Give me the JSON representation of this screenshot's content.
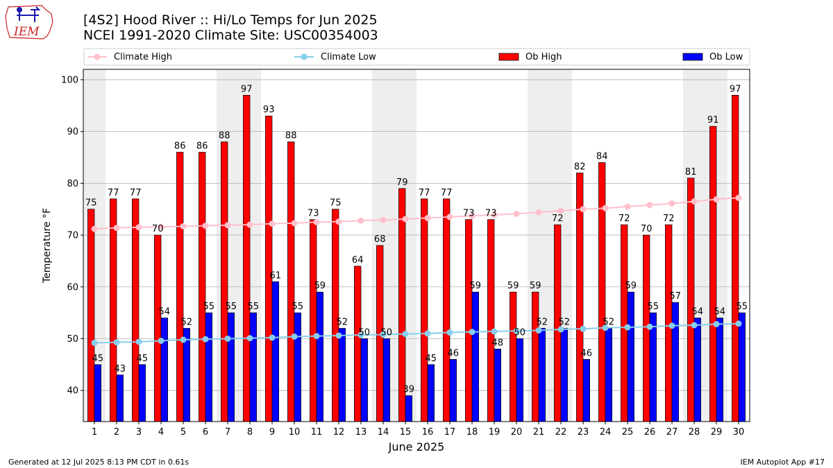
{
  "header": {
    "title_line1": "[4S2] Hood River :: Hi/Lo Temps for Jun 2025",
    "title_line2": "NCEI 1991-2020 Climate Site: USC00354003",
    "logo_text": "IEM"
  },
  "footer": {
    "generated": "Generated at 12 Jul 2025 8:13 PM CDT in 0.61s",
    "app": "IEM Autoplot App #17"
  },
  "colors": {
    "ob_high": "#ff0000",
    "ob_low": "#0000ff",
    "climate_high": "#ffc0cb",
    "climate_low": "#87ceeb",
    "weekend_shade": "#eeeeee",
    "grid": "#b0b0b0"
  },
  "chart_data": {
    "type": "bar",
    "title": "[4S2] Hood River :: Hi/Lo Temps for Jun 2025",
    "subtitle": "NCEI 1991-2020 Climate Site: USC00354003",
    "xlabel": "June 2025",
    "ylabel": "Temperature °F",
    "ylim": [
      34,
      102
    ],
    "yticks": [
      40,
      50,
      60,
      70,
      80,
      90,
      100
    ],
    "grid": true,
    "legend_position": "top",
    "categories": [
      "1",
      "2",
      "3",
      "4",
      "5",
      "6",
      "7",
      "8",
      "9",
      "10",
      "11",
      "12",
      "13",
      "14",
      "15",
      "16",
      "17",
      "18",
      "19",
      "20",
      "21",
      "22",
      "23",
      "24",
      "25",
      "26",
      "27",
      "28",
      "29",
      "30"
    ],
    "shaded_days": [
      1,
      7,
      8,
      14,
      15,
      21,
      22,
      28,
      29
    ],
    "series": [
      {
        "name": "Climate High",
        "type": "line",
        "values": [
          71.2,
          71.4,
          71.5,
          71.6,
          71.7,
          71.8,
          71.9,
          72.0,
          72.2,
          72.3,
          72.5,
          72.6,
          72.8,
          72.9,
          73.1,
          73.3,
          73.5,
          73.7,
          73.9,
          74.1,
          74.4,
          74.7,
          75.0,
          75.2,
          75.5,
          75.8,
          76.1,
          76.5,
          76.9,
          77.2
        ]
      },
      {
        "name": "Climate Low",
        "type": "line",
        "values": [
          49.2,
          49.3,
          49.4,
          49.6,
          49.8,
          49.9,
          50.0,
          50.1,
          50.2,
          50.4,
          50.5,
          50.6,
          50.7,
          50.8,
          50.9,
          51.0,
          51.2,
          51.3,
          51.4,
          51.5,
          51.6,
          51.8,
          51.9,
          52.1,
          52.2,
          52.3,
          52.5,
          52.6,
          52.8,
          52.9
        ]
      },
      {
        "name": "Ob High",
        "type": "bar",
        "values": [
          75,
          77,
          77,
          70,
          86,
          86,
          88,
          97,
          93,
          88,
          73,
          75,
          64,
          68,
          79,
          77,
          77,
          73,
          73,
          59,
          59,
          72,
          82,
          84,
          72,
          70,
          72,
          81,
          91,
          97
        ]
      },
      {
        "name": "Ob Low",
        "type": "bar",
        "values": [
          45,
          43,
          45,
          54,
          52,
          55,
          55,
          55,
          61,
          55,
          59,
          52,
          50,
          50,
          39,
          45,
          46,
          59,
          48,
          50,
          52,
          52,
          46,
          52,
          59,
          55,
          57,
          54,
          54,
          55
        ]
      }
    ]
  }
}
